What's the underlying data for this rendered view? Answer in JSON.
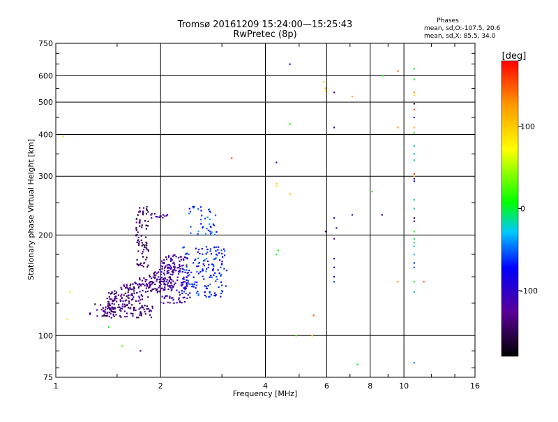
{
  "chart_data": {
    "type": "scatter",
    "title": "Tromsø 20161209 15:24:00—15:25:43",
    "subtitle": "RwPretec (8p)",
    "xlabel": "Frequency [MHz]",
    "ylabel": "Stationary phase Virtual Height [km]",
    "x_scale": "log2",
    "y_scale": "log",
    "xlim": [
      1,
      16
    ],
    "ylim": [
      75,
      750
    ],
    "x_ticks": [
      1,
      2,
      4,
      6,
      8,
      10,
      16
    ],
    "x_tick_labels": [
      "1",
      "2",
      "4",
      "6",
      "8",
      "10",
      "16"
    ],
    "y_ticks": [
      75,
      100,
      200,
      300,
      400,
      500,
      600,
      750
    ],
    "y_tick_labels": [
      "75",
      "100",
      "200",
      "300",
      "400",
      "500",
      "600",
      "750"
    ],
    "gridlines": true,
    "legend": {
      "title": "Phases",
      "line1": "mean, sd,O:-107.5, 20.6",
      "line2": "mean, sd,X:  85.5, 34.0"
    },
    "colorbar": {
      "label": "[deg]",
      "range": [
        -180,
        180
      ],
      "tick_labels": [
        "100",
        "0",
        "-100"
      ],
      "tick_values": [
        100,
        0,
        -100
      ]
    },
    "series": [
      {
        "name": "echoes",
        "points": [
          [
            1.05,
            395,
            60
          ],
          [
            1.1,
            135,
            60
          ],
          [
            1.08,
            112,
            80
          ],
          [
            1.42,
            106,
            10
          ],
          [
            1.55,
            93,
            30
          ],
          [
            1.75,
            90,
            -140
          ],
          [
            3.2,
            340,
            150
          ],
          [
            4.3,
            330,
            -100
          ],
          [
            4.3,
            285,
            100
          ],
          [
            4.3,
            280,
            90
          ],
          [
            4.35,
            180,
            10
          ],
          [
            4.3,
            175,
            5
          ],
          [
            4.7,
            650,
            -120
          ],
          [
            4.7,
            430,
            10
          ],
          [
            4.7,
            265,
            110
          ],
          [
            4.9,
            100,
            20
          ],
          [
            5.5,
            115,
            150
          ],
          [
            5.45,
            100,
            100
          ],
          [
            5.9,
            575,
            90
          ],
          [
            5.95,
            550,
            110
          ],
          [
            5.95,
            540,
            80
          ],
          [
            6.3,
            535,
            -110
          ],
          [
            6.3,
            420,
            -110
          ],
          [
            5.95,
            205,
            -120
          ],
          [
            6.3,
            225,
            -110
          ],
          [
            6.4,
            210,
            -100
          ],
          [
            6.3,
            195,
            -120
          ],
          [
            6.3,
            170,
            -90
          ],
          [
            6.3,
            160,
            -80
          ],
          [
            6.3,
            150,
            -70
          ],
          [
            6.3,
            145,
            -60
          ],
          [
            7.1,
            520,
            120
          ],
          [
            7.1,
            230,
            -120
          ],
          [
            7.35,
            82,
            0
          ],
          [
            8.1,
            270,
            10
          ],
          [
            8.65,
            230,
            -140
          ],
          [
            8.7,
            600,
            10
          ],
          [
            9.6,
            620,
            140
          ],
          [
            9.6,
            420,
            130
          ],
          [
            9.6,
            145,
            120
          ],
          [
            10.7,
            630,
            0
          ],
          [
            10.7,
            585,
            5
          ],
          [
            10.7,
            535,
            130
          ],
          [
            10.7,
            525,
            90
          ],
          [
            10.7,
            495,
            -160
          ],
          [
            10.7,
            475,
            160
          ],
          [
            10.7,
            450,
            -60
          ],
          [
            10.7,
            420,
            110
          ],
          [
            10.7,
            405,
            20
          ],
          [
            10.7,
            370,
            -20
          ],
          [
            10.7,
            350,
            -30
          ],
          [
            10.7,
            335,
            -10
          ],
          [
            10.7,
            305,
            160
          ],
          [
            10.7,
            300,
            110
          ],
          [
            10.7,
            295,
            -100
          ],
          [
            10.7,
            290,
            -90
          ],
          [
            10.7,
            255,
            -10
          ],
          [
            10.7,
            240,
            -20
          ],
          [
            10.7,
            225,
            -120
          ],
          [
            10.7,
            220,
            -130
          ],
          [
            10.7,
            205,
            10
          ],
          [
            10.7,
            195,
            -10
          ],
          [
            10.7,
            190,
            -5
          ],
          [
            10.7,
            185,
            -20
          ],
          [
            10.7,
            175,
            -30
          ],
          [
            10.7,
            165,
            -60
          ],
          [
            10.7,
            160,
            -50
          ],
          [
            10.7,
            145,
            10
          ],
          [
            10.7,
            135,
            -20
          ],
          [
            10.7,
            83,
            -40
          ],
          [
            11.4,
            145,
            150
          ]
        ]
      }
    ],
    "clusters": [
      {
        "x_range": [
          1.25,
          1.9
        ],
        "y_range": [
          113,
          125
        ],
        "phase": -135,
        "count": 90,
        "shape": "band"
      },
      {
        "x_range": [
          1.4,
          2.2
        ],
        "y_range": [
          120,
          160
        ],
        "phase": -130,
        "count": 260,
        "shape": "curve"
      },
      {
        "x_range": [
          1.7,
          1.85
        ],
        "y_range": [
          160,
          245
        ],
        "phase": -140,
        "count": 80,
        "shape": "column"
      },
      {
        "x_range": [
          1.85,
          2.1
        ],
        "y_range": [
          225,
          232
        ],
        "phase": -120,
        "count": 14,
        "shape": "band"
      },
      {
        "x_range": [
          2.0,
          2.4
        ],
        "y_range": [
          125,
          175
        ],
        "phase": -110,
        "count": 130,
        "shape": "cloud"
      },
      {
        "x_range": [
          2.3,
          3.1
        ],
        "y_range": [
          130,
          185
        ],
        "phase": -70,
        "count": 160,
        "shape": "cloud"
      },
      {
        "x_range": [
          2.4,
          2.9
        ],
        "y_range": [
          200,
          245
        ],
        "phase": -60,
        "count": 40,
        "shape": "cloud"
      }
    ]
  }
}
